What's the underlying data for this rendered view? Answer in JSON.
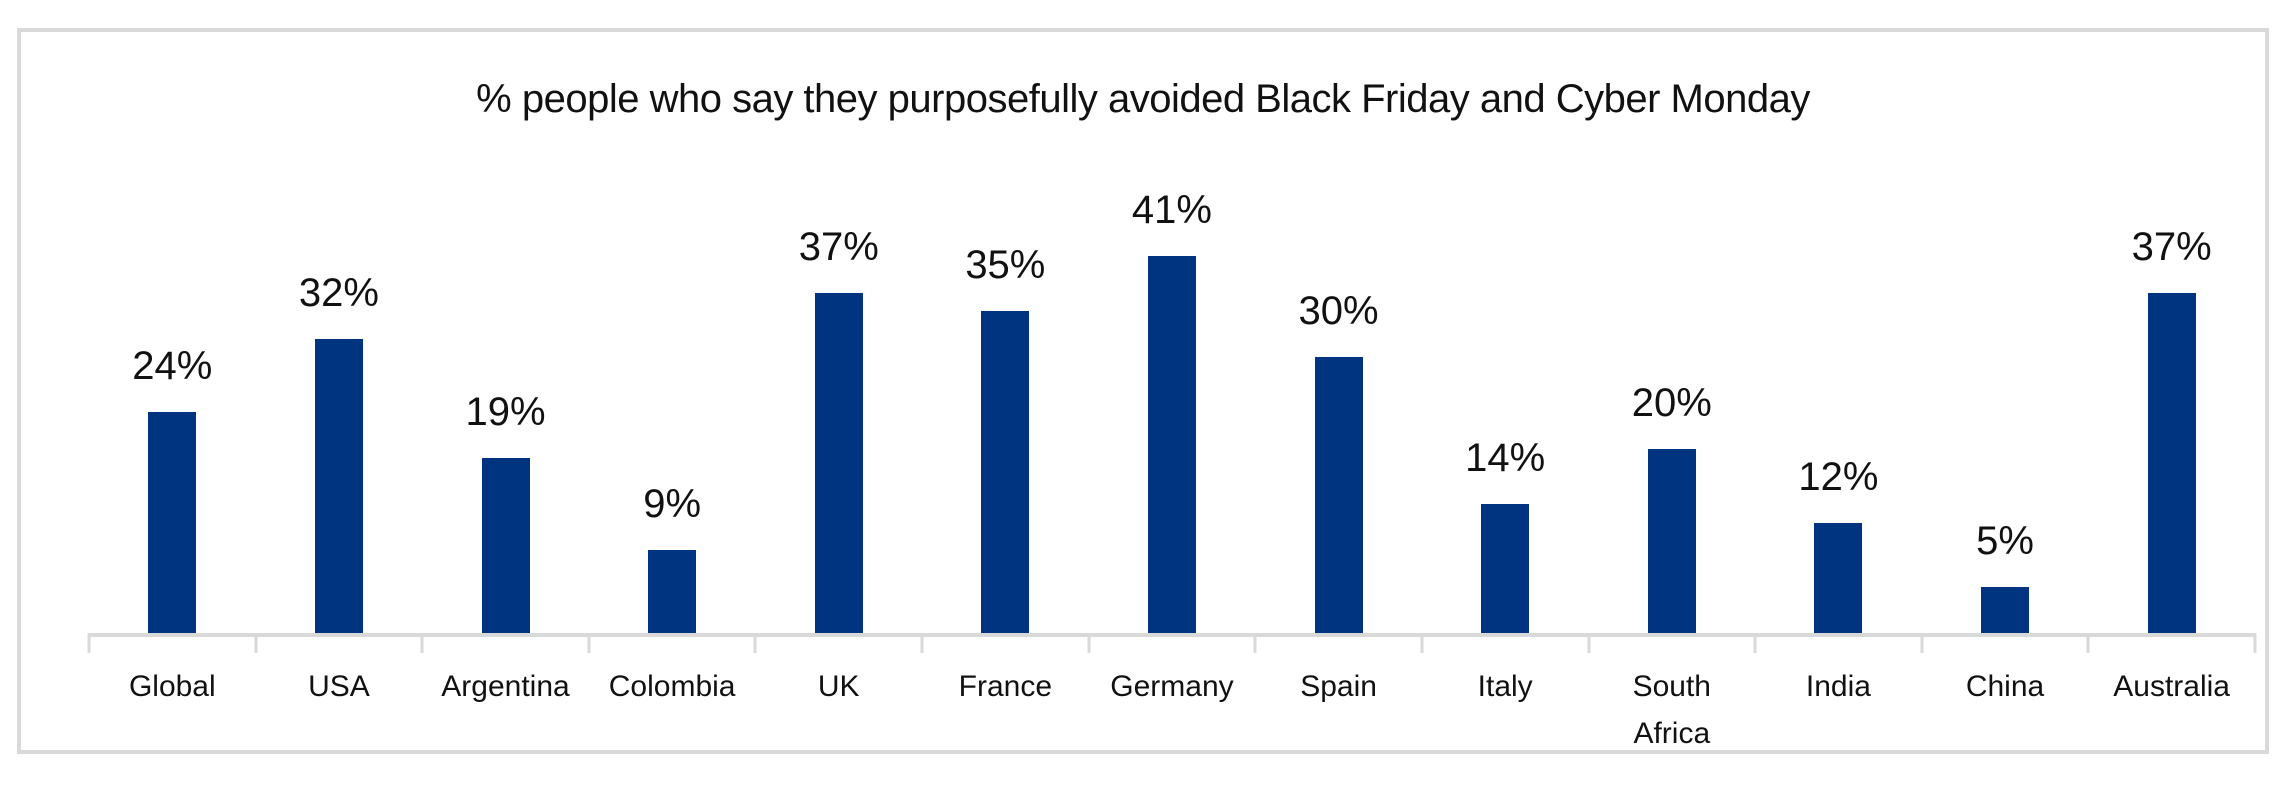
{
  "chart_data": {
    "type": "bar",
    "title": "% people who say they purposefully avoided Black Friday and Cyber Monday",
    "categories": [
      "Global",
      "USA",
      "Argentina",
      "Colombia",
      "UK",
      "France",
      "Germany",
      "Spain",
      "Italy",
      "South Africa",
      "India",
      "China",
      "Australia"
    ],
    "values": [
      24,
      32,
      19,
      9,
      37,
      35,
      41,
      30,
      14,
      20,
      12,
      5,
      37
    ],
    "data_labels": [
      "24%",
      "32%",
      "19%",
      "9%",
      "37%",
      "35%",
      "41%",
      "30%",
      "14%",
      "20%",
      "12%",
      "5%",
      "37%"
    ],
    "xlabel": "",
    "ylabel": "",
    "ylim": [
      0,
      45
    ],
    "grid": "off",
    "legend": "none",
    "y_axis_visible": false,
    "bar_color": "#003380",
    "axis_color": "#D9D9D9",
    "frame_color": "#D9D9D9",
    "text_color": "#111111",
    "background_color": "#FFFFFF"
  }
}
